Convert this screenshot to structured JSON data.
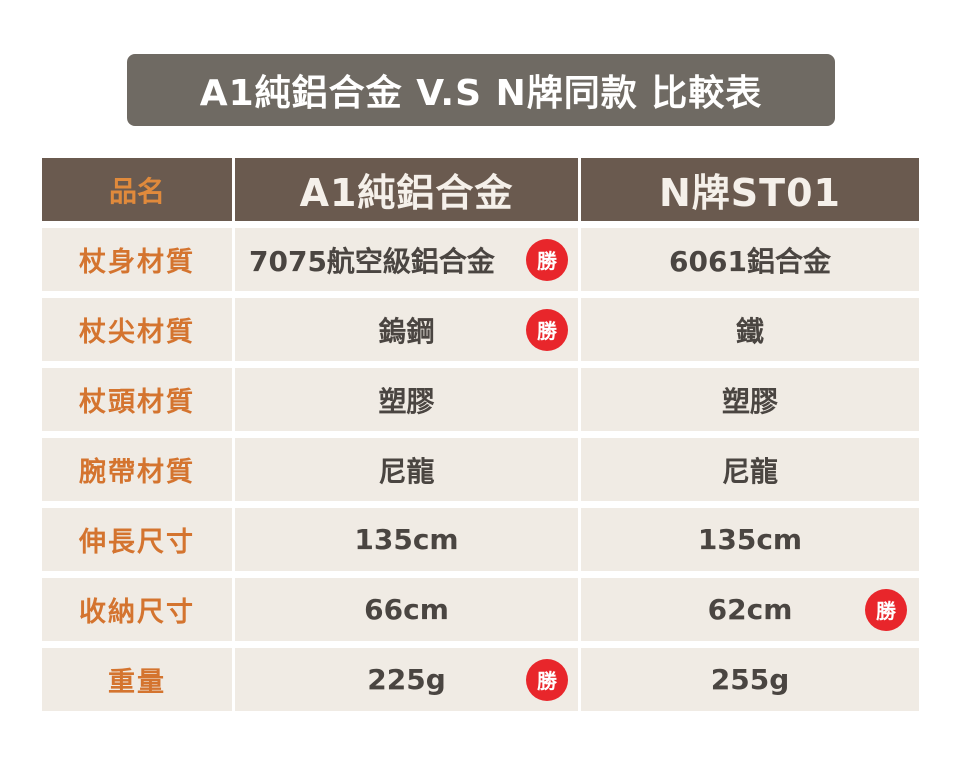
{
  "title": "A1純鋁合金 V.S N牌同款 比較表",
  "header": {
    "label": "品名",
    "col_a": "A1純鋁合金",
    "col_b": "N牌ST01"
  },
  "win_label": "勝",
  "rows": [
    {
      "label": "杖身材質",
      "a": "7075航空級鋁合金",
      "b": "6061鋁合金"
    },
    {
      "label": "杖尖材質",
      "a": "鎢鋼",
      "b": "鐵"
    },
    {
      "label": "杖頭材質",
      "a": "塑膠",
      "b": "塑膠"
    },
    {
      "label": "腕帶材質",
      "a": "尼龍",
      "b": "尼龍"
    },
    {
      "label": "伸長尺寸",
      "a": "135cm",
      "b": "135cm"
    },
    {
      "label": "收納尺寸",
      "a": "66cm",
      "b": "62cm"
    },
    {
      "label": "重量",
      "a": "225g",
      "b": "255g"
    }
  ],
  "colors": {
    "banner": "#6f6a63",
    "header": "#6a5a4f",
    "label_text": "#d4742f",
    "cell_bg": "#f0ebe4",
    "win_badge": "#e8262b"
  }
}
